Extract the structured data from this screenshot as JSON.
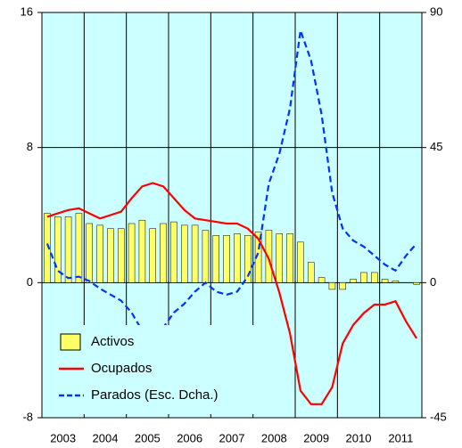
{
  "chart_data": {
    "type": "bar_line",
    "categories": [
      "2003",
      null,
      null,
      null,
      "2004",
      null,
      null,
      null,
      "2005",
      null,
      null,
      null,
      "2006",
      null,
      null,
      null,
      "2007",
      null,
      null,
      null,
      "2008",
      null,
      null,
      null,
      "2009",
      null,
      null,
      null,
      "2010",
      null,
      null,
      null,
      "2011",
      null,
      null,
      null
    ],
    "series": [
      {
        "name": "Activos",
        "type": "bar",
        "color": "#ffff66",
        "axis": "y",
        "values": [
          4.1,
          3.9,
          3.9,
          4.1,
          3.5,
          3.4,
          3.2,
          3.2,
          3.5,
          3.7,
          3.2,
          3.5,
          3.6,
          3.4,
          3.4,
          3.1,
          2.8,
          2.8,
          2.9,
          2.8,
          3.0,
          3.1,
          2.9,
          2.9,
          2.4,
          1.2,
          0.3,
          -0.4,
          -0.4,
          0.2,
          0.6,
          0.6,
          0.2,
          0.1,
          0.0,
          -0.1
        ]
      },
      {
        "name": "Ocupados",
        "type": "line",
        "color": "#ff0000",
        "axis": "y",
        "values": [
          3.9,
          4.1,
          4.3,
          4.4,
          4.1,
          3.8,
          4.0,
          4.2,
          5.0,
          5.7,
          5.9,
          5.7,
          5.0,
          4.3,
          3.8,
          3.7,
          3.6,
          3.5,
          3.5,
          3.2,
          2.6,
          1.4,
          -0.6,
          -3.0,
          -6.4,
          -7.2,
          -7.2,
          -6.2,
          -3.6,
          -2.5,
          -1.8,
          -1.3,
          -1.3,
          -1.1,
          -2.3,
          -3.3
        ]
      },
      {
        "name": "Parados (Esc. Dcha.)",
        "type": "line",
        "dashed": true,
        "color": "#0033ff",
        "axis": "y2",
        "values": [
          13,
          4,
          1.5,
          2,
          0.5,
          -2,
          -4,
          -6,
          -10,
          -16,
          -19,
          -15,
          -10,
          -7,
          -3,
          0,
          -3,
          -4,
          -3,
          2,
          10,
          33,
          43,
          58,
          84,
          74,
          56,
          30,
          18,
          14,
          12,
          9,
          6,
          4,
          9,
          13
        ]
      }
    ],
    "ylim": [
      -8,
      16
    ],
    "yticks": [
      -8,
      0,
      8,
      16
    ],
    "y2lim": [
      -45,
      90
    ],
    "y2ticks": [
      -45,
      0,
      45,
      90
    ],
    "legend": "lower left",
    "background": "#ccffff"
  }
}
